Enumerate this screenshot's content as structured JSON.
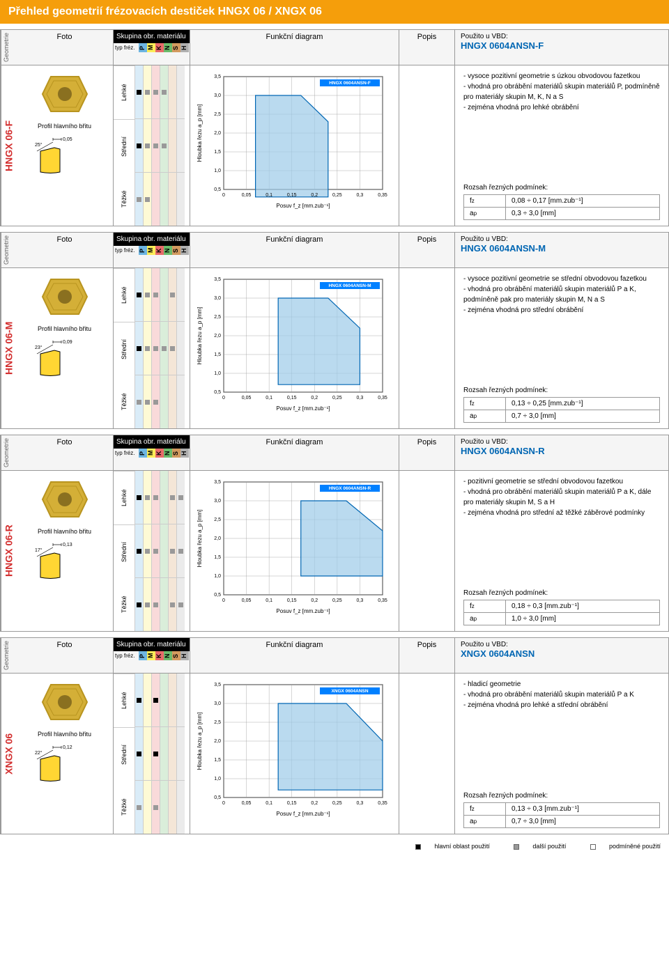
{
  "title": "Přehled geometrií frézovacích destiček HNGX 06 / XNGX 06",
  "columns": {
    "geometrie": "Geometrie",
    "foto": "Foto",
    "skupina": "Skupina obr. materiálu",
    "typ_frez": "typ fréz.",
    "diagram": "Funkční diagram",
    "popis": "Popis",
    "vbd_label": "Použito u VBD:"
  },
  "materials": [
    {
      "letter": "P",
      "color": "#6db5e2"
    },
    {
      "letter": "M",
      "color": "#fced58"
    },
    {
      "letter": "K",
      "color": "#e86a6a"
    },
    {
      "letter": "N",
      "color": "#6bbb6b"
    },
    {
      "letter": "S",
      "color": "#d39a5f"
    },
    {
      "letter": "H",
      "color": "#b0b0b0"
    }
  ],
  "duty_levels": [
    "Lehké",
    "Střední",
    "Těžké"
  ],
  "chart_axes": {
    "x_ticks": [
      0,
      0.05,
      0.1,
      0.15,
      0.2,
      0.25,
      0.3,
      0.35
    ],
    "y_ticks": [
      0.5,
      1.0,
      1.5,
      2.0,
      2.5,
      3.0,
      3.5
    ],
    "x_label": "Posuv f_z [mm.zub⁻¹]",
    "y_label": "Hloubka řezu a_p [mm]",
    "grid_color": "#999",
    "region_fill": "#9dcbe8",
    "region_stroke": "#0066b3",
    "label_bg": "#0080ff"
  },
  "profil_label": "Profil hlavního břitu",
  "insert_colors": {
    "face": "#d4af37",
    "edge": "#b8941f",
    "hole": "#8a7020"
  },
  "profile_colors": {
    "fill": "#ffd633",
    "stroke": "#000"
  },
  "cond_title": "Rozsah řezných podmínek:",
  "rows": {
    "fz": "f_z",
    "ap": "a_p"
  },
  "legend": {
    "main": "hlavní oblast použití",
    "other": "další použití",
    "cond": "podmíněné použití"
  },
  "sections": [
    {
      "side": "HNGX 06-F",
      "vbd": "HNGX 0604ANSN-F",
      "chart_label": "HNGX 0604ANSN-F",
      "usage": [
        [
          "f",
          "h",
          "h",
          "h",
          "",
          ""
        ],
        [
          "f",
          "h",
          "h",
          "h",
          "",
          ""
        ],
        [
          "h",
          "h",
          "",
          "",
          "",
          ""
        ]
      ],
      "region": [
        [
          0.07,
          0.3
        ],
        [
          0.07,
          3.0
        ],
        [
          0.17,
          3.0
        ],
        [
          0.23,
          2.3
        ],
        [
          0.23,
          0.3
        ]
      ],
      "angle": "25°",
      "land": "0,05",
      "desc": [
        "vysoce pozitivní geometrie s úzkou obvodovou fazetkou",
        "vhodná pro obrábění materiálů skupin materiálů P, podmíněně pro materiály skupin M, K, N a S",
        "zejména vhodná pro lehké obrábění"
      ],
      "fz": "0,08 ÷ 0,17 [mm.zub⁻¹]",
      "ap": "0,3 ÷ 3,0 [mm]"
    },
    {
      "side": "HNGX 06-M",
      "vbd": "HNGX 0604ANSN-M",
      "chart_label": "HNGX 0604ANSN-M",
      "usage": [
        [
          "f",
          "h",
          "h",
          "",
          "h",
          ""
        ],
        [
          "f",
          "h",
          "h",
          "h",
          "h",
          ""
        ],
        [
          "h",
          "h",
          "h",
          "",
          "",
          ""
        ]
      ],
      "region": [
        [
          0.12,
          0.7
        ],
        [
          0.12,
          3.0
        ],
        [
          0.23,
          3.0
        ],
        [
          0.3,
          2.2
        ],
        [
          0.3,
          0.7
        ]
      ],
      "angle": "23°",
      "land": "0,09",
      "desc": [
        "vysoce pozitivní geometrie se střední obvodovou fazetkou",
        "vhodná pro obrábění materiálů skupin materiálů P a K, podmíněně pak pro materiály skupin M, N a S",
        "zejména vhodná pro střední obrábění"
      ],
      "fz": "0,13 ÷ 0,25 [mm.zub⁻¹]",
      "ap": "0,7 ÷ 3,0 [mm]"
    },
    {
      "side": "HNGX 06-R",
      "vbd": "HNGX 0604ANSN-R",
      "chart_label": "HNGX 0604ANSN-R",
      "usage": [
        [
          "f",
          "h",
          "h",
          "",
          "h",
          "h"
        ],
        [
          "f",
          "h",
          "h",
          "",
          "h",
          "h"
        ],
        [
          "f",
          "h",
          "h",
          "",
          "h",
          "h"
        ]
      ],
      "region": [
        [
          0.17,
          1.0
        ],
        [
          0.17,
          3.0
        ],
        [
          0.27,
          3.0
        ],
        [
          0.35,
          2.2
        ],
        [
          0.35,
          1.0
        ]
      ],
      "angle": "17°",
      "land": "0,13",
      "desc": [
        "pozitivní geometrie se střední obvodovou fazetkou",
        "vhodná pro obrábění materiálů skupin materiálů P a K, dále pro materiály skupin M, S a H",
        "zejména vhodná pro střední až těžké záběrové podmínky"
      ],
      "fz": "0,18 ÷ 0,3 [mm.zub⁻¹]",
      "ap": "1,0 ÷ 3,0 [mm]"
    },
    {
      "side": "XNGX 06",
      "vbd": "XNGX 0604ANSN",
      "chart_label": "XNGX 0604ANSN",
      "usage": [
        [
          "f",
          "",
          "f",
          "",
          "",
          ""
        ],
        [
          "f",
          "",
          "f",
          "",
          "",
          ""
        ],
        [
          "h",
          "",
          "h",
          "",
          "",
          ""
        ]
      ],
      "region": [
        [
          0.12,
          0.7
        ],
        [
          0.12,
          3.0
        ],
        [
          0.27,
          3.0
        ],
        [
          0.35,
          2.0
        ],
        [
          0.35,
          0.7
        ]
      ],
      "angle": "22°",
      "land": "0,12",
      "desc": [
        "hladicí geometrie",
        "vhodná pro obrábění materiálů skupin materiálů P a K",
        "zejména vhodná pro lehké a střední obrábění"
      ],
      "fz": "0,13 ÷ 0,3 [mm.zub⁻¹]",
      "ap": "0,7 ÷ 3,0 [mm]"
    }
  ]
}
